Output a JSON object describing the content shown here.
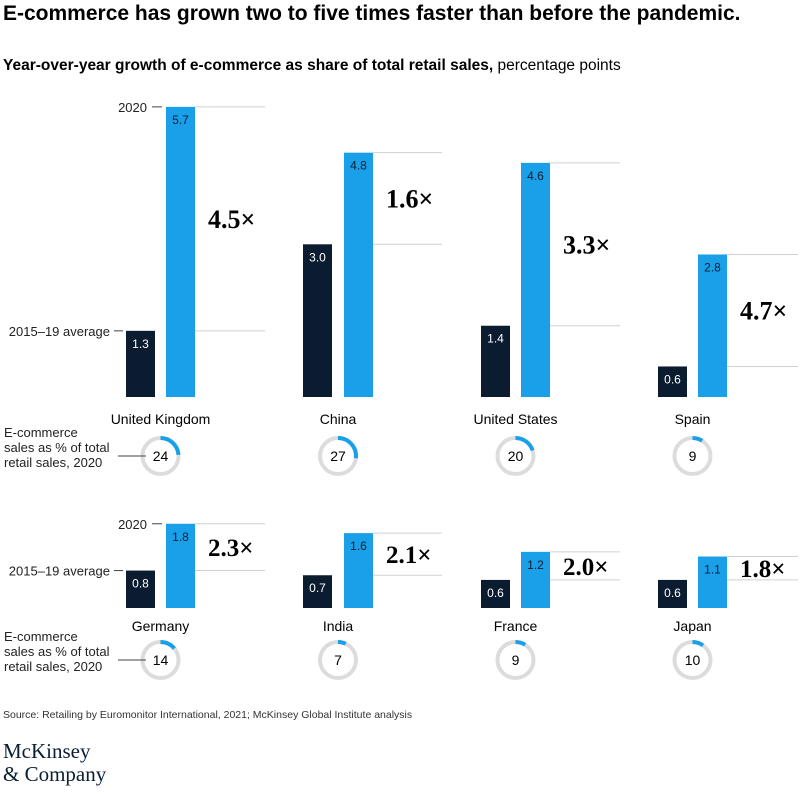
{
  "title": "E-commerce has grown two to five times faster than before the pandemic.",
  "subtitle_bold": "Year-over-year growth of e-commerce as share of total retail sales,",
  "subtitle_rest": " percentage points",
  "source": "Source: Retailing by Euromonitor International, 2021; McKinsey Global Institute analysis",
  "logo": {
    "line1": "McKinsey",
    "line2": "& Company"
  },
  "colors": {
    "avg_bar": "#0b1c30",
    "year2020_bar": "#1aa0e8",
    "ring_track": "#dcdcdc",
    "ring_fill": "#1aa0e8",
    "rule": "#d0d0d0",
    "text": "#000000"
  },
  "labels": {
    "year_2020": "2020",
    "avg": "2015–19 average",
    "share_caption": [
      "E-commerce",
      "sales as % of total",
      "retail sales, 2020"
    ]
  },
  "chart_data": {
    "type": "bar",
    "title": "E-commerce has grown two to five times faster than before the pandemic.",
    "ylabel": "Year-over-year growth of e-commerce as share of total retail sales, percentage points",
    "series": [
      {
        "name": "2015–19 average",
        "values": [
          1.3,
          3.0,
          1.4,
          0.6,
          0.8,
          0.7,
          0.6,
          0.6
        ]
      },
      {
        "name": "2020",
        "values": [
          5.7,
          4.8,
          4.6,
          2.8,
          1.8,
          1.6,
          1.2,
          1.1
        ]
      }
    ],
    "countries": [
      {
        "name": "United Kingdom",
        "avg": 1.3,
        "y2020": 5.7,
        "multiple": "4.5×",
        "share": 24
      },
      {
        "name": "China",
        "avg": 3.0,
        "y2020": 4.8,
        "multiple": "1.6×",
        "share": 27
      },
      {
        "name": "United States",
        "avg": 1.4,
        "y2020": 4.6,
        "multiple": "3.3×",
        "share": 20
      },
      {
        "name": "Spain",
        "avg": 0.6,
        "y2020": 2.8,
        "multiple": "4.7×",
        "share": 9
      },
      {
        "name": "Germany",
        "avg": 0.8,
        "y2020": 1.8,
        "multiple": "2.3×",
        "share": 14
      },
      {
        "name": "India",
        "avg": 0.7,
        "y2020": 1.6,
        "multiple": "2.1×",
        "share": 7
      },
      {
        "name": "France",
        "avg": 0.6,
        "y2020": 1.2,
        "multiple": "2.0×",
        "share": 9
      },
      {
        "name": "Japan",
        "avg": 0.6,
        "y2020": 1.1,
        "multiple": "1.8×",
        "share": 10
      }
    ]
  }
}
